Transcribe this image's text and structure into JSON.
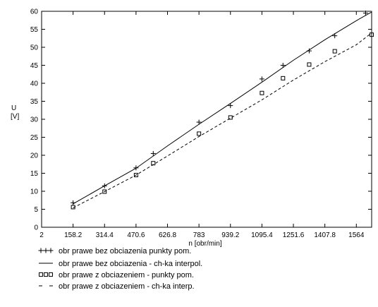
{
  "chart_data": {
    "type": "line",
    "title": "",
    "xlabel": "n [obr/min]",
    "ylabel_lines": [
      "U",
      "[V]"
    ],
    "xlim": [
      2,
      1640
    ],
    "ylim": [
      0,
      60
    ],
    "x_ticks": [
      2,
      158.2,
      314.4,
      470.6,
      626.8,
      783,
      939.2,
      1095.4,
      1251.6,
      1407.8,
      1564
    ],
    "y_ticks": [
      0,
      5,
      10,
      15,
      20,
      25,
      30,
      35,
      40,
      45,
      50,
      55,
      60
    ],
    "grid": false,
    "legend_position": "bottom",
    "series": [
      {
        "name": "obr prawe bez obciazenia    punkty pom.",
        "style": "plus-markers",
        "points": [
          [
            158.2,
            6.8
          ],
          [
            314.4,
            11.5
          ],
          [
            470.6,
            16.5
          ],
          [
            556,
            20.5
          ],
          [
            783,
            29.2
          ],
          [
            939.2,
            33.8
          ],
          [
            1095.4,
            41.2
          ],
          [
            1200,
            45.0
          ],
          [
            1330,
            49.0
          ],
          [
            1457,
            53.2
          ],
          [
            1610,
            59.5
          ]
        ]
      },
      {
        "name": "obr prawe bez obciazenia - ch-ka interpol.",
        "style": "solid-line",
        "points": [
          [
            158.2,
            6.5
          ],
          [
            314.4,
            11.5
          ],
          [
            470.6,
            16.4
          ],
          [
            626.8,
            22.6
          ],
          [
            783,
            28.6
          ],
          [
            939.2,
            34.4
          ],
          [
            1095.4,
            40.3
          ],
          [
            1251.6,
            46.4
          ],
          [
            1407.8,
            52.1
          ],
          [
            1564,
            57.4
          ],
          [
            1640,
            59.8
          ]
        ]
      },
      {
        "name": "obr prawe z obciazeniem    - punkty pom.",
        "style": "square-markers",
        "points": [
          [
            158.2,
            5.6
          ],
          [
            314.4,
            9.9
          ],
          [
            470.6,
            14.5
          ],
          [
            556,
            17.8
          ],
          [
            783,
            26.0
          ],
          [
            939.2,
            30.5
          ],
          [
            1095.4,
            37.3
          ],
          [
            1200,
            41.4
          ],
          [
            1330,
            45.2
          ],
          [
            1457,
            48.9
          ],
          [
            1640,
            53.5
          ]
        ]
      },
      {
        "name": "obr prawe z obciazeniem    - ch-ka interp.",
        "style": "dashed-line",
        "points": [
          [
            158.2,
            5.4
          ],
          [
            314.4,
            9.9
          ],
          [
            470.6,
            14.5
          ],
          [
            626.8,
            19.8
          ],
          [
            783,
            25.2
          ],
          [
            939.2,
            30.3
          ],
          [
            1095.4,
            35.4
          ],
          [
            1251.6,
            40.9
          ],
          [
            1407.8,
            46.0
          ],
          [
            1564,
            50.7
          ],
          [
            1640,
            54.0
          ]
        ]
      }
    ]
  }
}
